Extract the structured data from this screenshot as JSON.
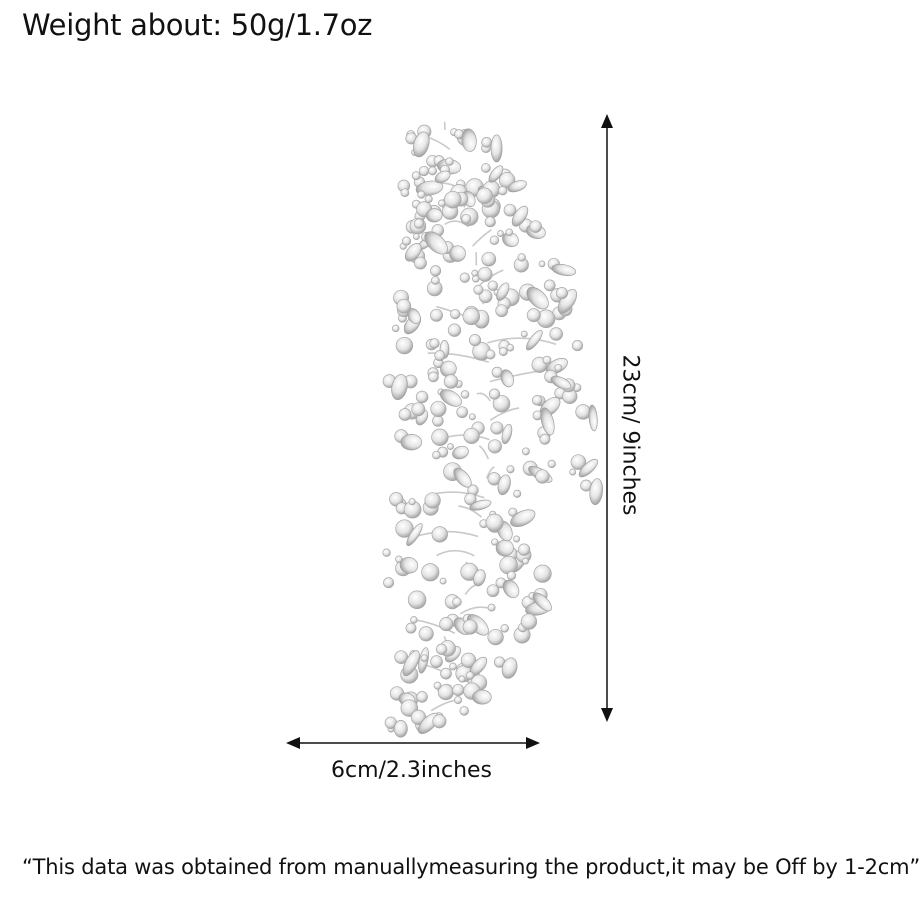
{
  "header": {
    "weight_text": "Weight about: 50g/1.7oz"
  },
  "product": {
    "icon": "rhinestone-hair-vine-icon"
  },
  "dimensions": {
    "height_label": "23cm/ 9inches",
    "width_label": "6cm/2.3inches"
  },
  "footer": {
    "note": "“This data was obtained from manuallymeasuring the product,it may be Off by 1-2cm”"
  }
}
